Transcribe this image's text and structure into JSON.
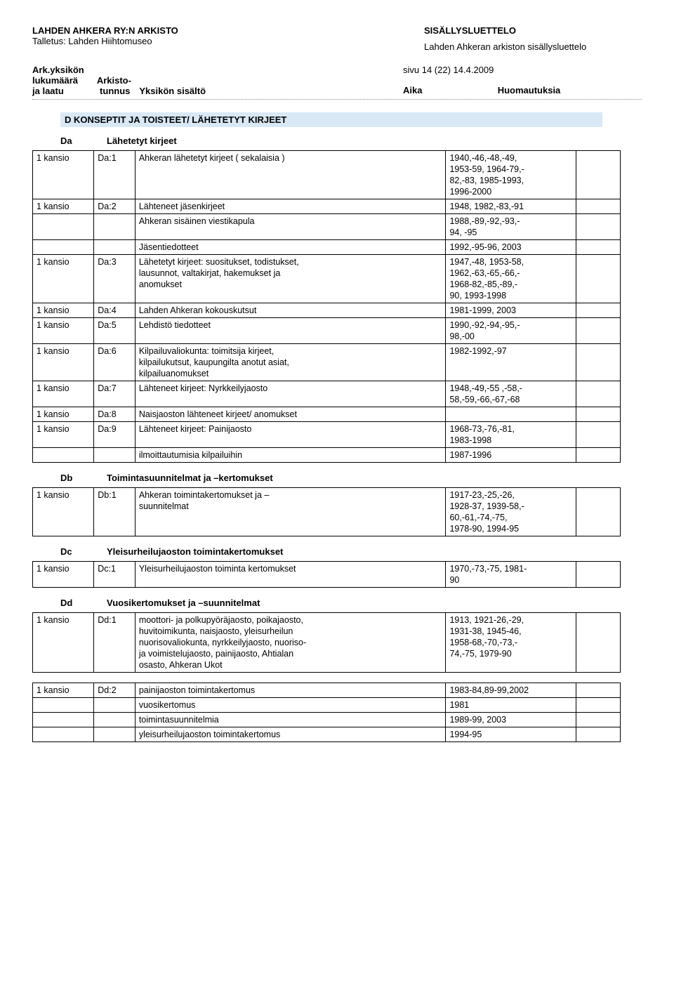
{
  "header": {
    "title_left": "LAHDEN AHKERA RY:N  ARKISTO",
    "deposit_label": "Talletus: Lahden Hiihtomuseo",
    "title_right": "SISÄLLYSLUETTELO",
    "subtitle_right": "Lahden Ahkeran arkiston sisällysluettelo"
  },
  "columns": {
    "left1": "Ark.yksikön",
    "left2": "lukumäärä",
    "left3": "ja laatu",
    "mid1": "Arkisto-",
    "mid2": "tunnus",
    "mid3": "Yksikön sisältö",
    "page_info": "sivu 14 (22) 14.4.2009",
    "right1": "Aika",
    "right2": "Huomautuksia"
  },
  "section_d": {
    "title": "D  KONSEPTIT JA TOISTEET/ LÄHETETYT KIRJEET"
  },
  "da": {
    "code": "Da",
    "label": "Lähetetyt kirjeet",
    "rows": [
      {
        "c1": "1 kansio",
        "c2": "Da:1",
        "c3": "Ahkeran lähetetyt kirjeet ( sekalaisia )",
        "c4": "1940,-46,-48,-49,\n1953-59, 1964-79,-\n82,-83, 1985-1993,\n1996-2000",
        "c5": ""
      },
      {
        "c1": "1 kansio",
        "c2": "Da:2",
        "c3": "Lähteneet jäsenkirjeet",
        "c4": "1948, 1982,-83,-91",
        "c5": ""
      },
      {
        "c1": "",
        "c2": "",
        "c3": "Ahkeran sisäinen viestikapula",
        "c4": "1988,-89,-92,-93,-\n94, -95",
        "c5": ""
      },
      {
        "c1": "",
        "c2": "",
        "c3": "Jäsentiedotteet",
        "c4": "1992,-95-96, 2003",
        "c5": ""
      },
      {
        "c1": "1 kansio",
        "c2": "Da:3",
        "c3": "Lähetetyt kirjeet: suositukset, todistukset,\nlausunnot, valtakirjat, hakemukset ja\nanomukset",
        "c4": "1947,-48, 1953-58,\n1962,-63,-65,-66,-\n1968-82,-85,-89,-\n90, 1993-1998",
        "c5": ""
      },
      {
        "c1": "1 kansio",
        "c2": "Da:4",
        "c3": "Lahden Ahkeran kokouskutsut",
        "c4": "1981-1999, 2003",
        "c5": ""
      },
      {
        "c1": "1 kansio",
        "c2": "Da:5",
        "c3": "Lehdistö tiedotteet",
        "c4": "1990,-92,-94,-95,-\n98,-00",
        "c5": ""
      },
      {
        "c1": "1 kansio",
        "c2": "Da:6",
        "c3": "Kilpailuvaliokunta: toimitsija kirjeet,\nkilpailukutsut, kaupungilta anotut asiat,\nkilpailuanomukset",
        "c4": "1982-1992,-97",
        "c5": ""
      },
      {
        "c1": "1 kansio",
        "c2": "Da:7",
        "c3": "Lähteneet kirjeet: Nyrkkeilyjaosto",
        "c4": "1948,-49,-55 ,-58,-\n58,-59,-66,-67,-68",
        "c5": ""
      },
      {
        "c1": "1 kansio",
        "c2": "Da:8",
        "c3": "Naisjaoston lähteneet kirjeet/ anomukset",
        "c4": "",
        "c5": ""
      },
      {
        "c1": "1 kansio",
        "c2": "Da:9",
        "c3": "Lähteneet kirjeet: Painijaosto",
        "c4": "1968-73,-76,-81,\n1983-1998",
        "c5": ""
      },
      {
        "c1": "",
        "c2": "",
        "c3": "ilmoittautumisia kilpailuihin",
        "c4": "1987-1996",
        "c5": ""
      }
    ]
  },
  "db": {
    "code": "Db",
    "label": "Toimintasuunnitelmat ja –kertomukset",
    "rows": [
      {
        "c1": "1 kansio",
        "c2": "Db:1",
        "c3": "Ahkeran toimintakertomukset ja –\nsuunnitelmat",
        "c4": "1917-23,-25,-26,\n1928-37, 1939-58,-\n60,-61,-74,-75,\n1978-90, 1994-95",
        "c5": ""
      }
    ]
  },
  "dc": {
    "code": "Dc",
    "label": "Yleisurheilujaoston toimintakertomukset",
    "rows": [
      {
        "c1": "1 kansio",
        "c2": "Dc:1",
        "c3": "Yleisurheilujaoston toiminta kertomukset",
        "c4": "1970,-73,-75, 1981-\n90",
        "c5": ""
      }
    ]
  },
  "dd": {
    "code": "Dd",
    "label": "Vuosikertomukset ja –suunnitelmat",
    "rows1": [
      {
        "c1": "1 kansio",
        "c2": "Dd:1",
        "c3": "moottori- ja polkupyöräjaosto, poikajaosto,\nhuvitoimikunta, naisjaosto, yleisurheilun\nnuorisovaliokunta, nyrkkeilyjaosto, nuoriso-\nja voimistelujaosto, painijaosto, Ahtialan\nosasto, Ahkeran Ukot",
        "c4": "1913, 1921-26,-29,\n1931-38, 1945-46,\n1958-68,-70,-73,-\n74,-75, 1979-90",
        "c5": ""
      }
    ],
    "rows2": [
      {
        "c1": "1 kansio",
        "c2": "Dd:2",
        "c3": "painijaoston toimintakertomus",
        "c4": "1983-84,89-99,2002",
        "c5": ""
      },
      {
        "c1": "",
        "c2": "",
        "c3": "vuosikertomus",
        "c4": "1981",
        "c5": ""
      },
      {
        "c1": "",
        "c2": "",
        "c3": "toimintasuunnitelmia",
        "c4": "1989-99, 2003",
        "c5": ""
      },
      {
        "c1": "",
        "c2": "",
        "c3": "yleisurheilujaoston  toimintakertomus",
        "c4": "1994-95",
        "c5": ""
      }
    ]
  }
}
